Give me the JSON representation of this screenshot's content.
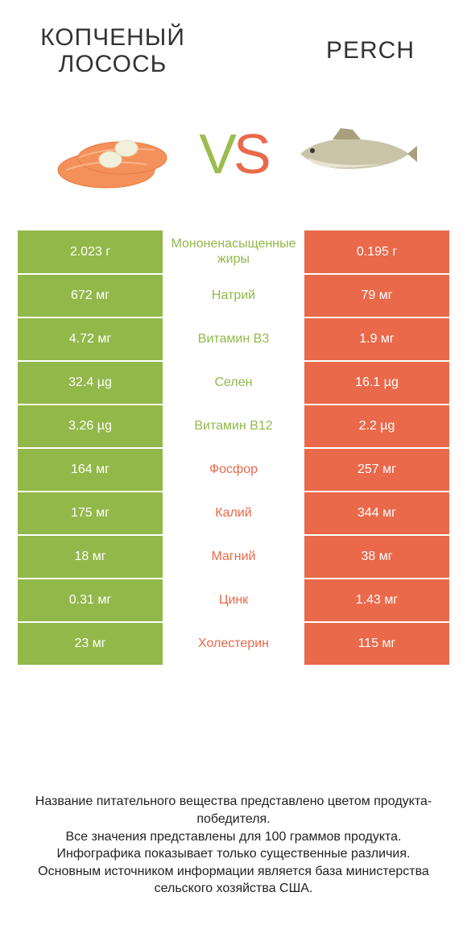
{
  "colors": {
    "green": "#92b84a",
    "orange": "#e9694a",
    "vs_left": "#9bbd4f",
    "vs_right": "#e9694a"
  },
  "header": {
    "left_title": "Копченый лосось",
    "right_title": "Perch",
    "vs": "VS"
  },
  "rows": [
    {
      "left": "2.023 г",
      "label": "Мононенасыщенные жиры",
      "right": "0.195 г",
      "winner": "left"
    },
    {
      "left": "672 мг",
      "label": "Натрий",
      "right": "79 мг",
      "winner": "left"
    },
    {
      "left": "4.72 мг",
      "label": "Витамин B3",
      "right": "1.9 мг",
      "winner": "left"
    },
    {
      "left": "32.4 µg",
      "label": "Селен",
      "right": "16.1 µg",
      "winner": "left"
    },
    {
      "left": "3.26 µg",
      "label": "Витамин B12",
      "right": "2.2 µg",
      "winner": "left"
    },
    {
      "left": "164 мг",
      "label": "Фосфор",
      "right": "257 мг",
      "winner": "right"
    },
    {
      "left": "175 мг",
      "label": "Калий",
      "right": "344 мг",
      "winner": "right"
    },
    {
      "left": "18 мг",
      "label": "Магний",
      "right": "38 мг",
      "winner": "right"
    },
    {
      "left": "0.31 мг",
      "label": "Цинк",
      "right": "1.43 мг",
      "winner": "right"
    },
    {
      "left": "23 мг",
      "label": "Холестерин",
      "right": "115 мг",
      "winner": "right"
    }
  ],
  "footer": {
    "line1": "Название питательного вещества представлено цветом продукта-победителя.",
    "line2": "Все значения представлены для 100 граммов продукта.",
    "line3": "Инфографика показывает только существенные различия.",
    "line4": "Основным источником информации является база министерства сельского хозяйства США."
  }
}
